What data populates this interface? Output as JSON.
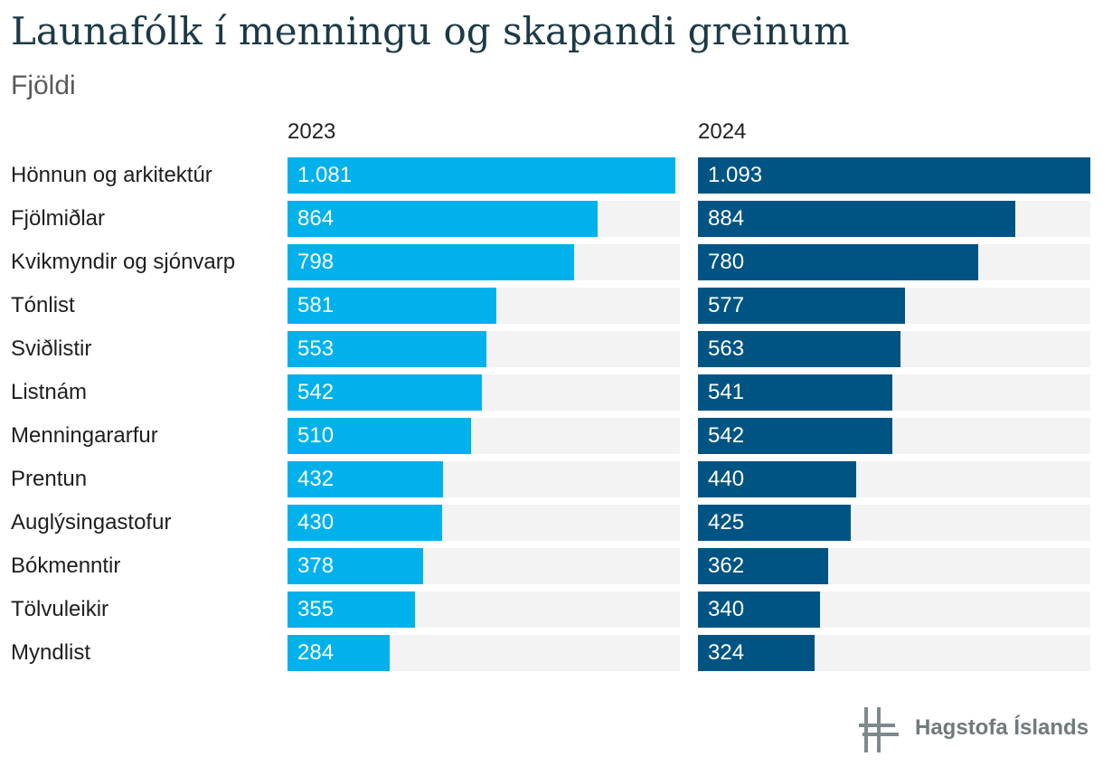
{
  "chart_data": {
    "type": "bar",
    "orientation": "horizontal",
    "title": "Launafólk í menningu og skapandi greinum",
    "subtitle": "Fjöldi",
    "categories": [
      "Hönnun og arkitektúr",
      "Fjölmiðlar",
      "Kvikmyndir og sjónvarp",
      "Tónlist",
      "Sviðlistir",
      "Listnám",
      "Menningararfur",
      "Prentun",
      "Auglýsingastofur",
      "Bókmenntir",
      "Tölvuleikir",
      "Myndlist"
    ],
    "series": [
      {
        "name": "2023",
        "color": "#00b1eb",
        "values": [
          1081,
          864,
          798,
          581,
          553,
          542,
          510,
          432,
          430,
          378,
          355,
          284
        ],
        "labels": [
          "1.081",
          "864",
          "798",
          "581",
          "553",
          "542",
          "510",
          "432",
          "430",
          "378",
          "355",
          "284"
        ]
      },
      {
        "name": "2024",
        "color": "#005484",
        "values": [
          1093,
          884,
          780,
          577,
          563,
          541,
          542,
          440,
          425,
          362,
          340,
          324
        ],
        "labels": [
          "1.093",
          "884",
          "780",
          "577",
          "563",
          "541",
          "542",
          "440",
          "425",
          "362",
          "340",
          "324"
        ]
      }
    ],
    "xlim": [
      0,
      1093
    ],
    "grid": false,
    "legend": "none",
    "track_color": "#f3f3f3"
  },
  "footer": {
    "brand": "Hagstofa Íslands",
    "logo_icon": "hagstofa-logo-icon"
  }
}
